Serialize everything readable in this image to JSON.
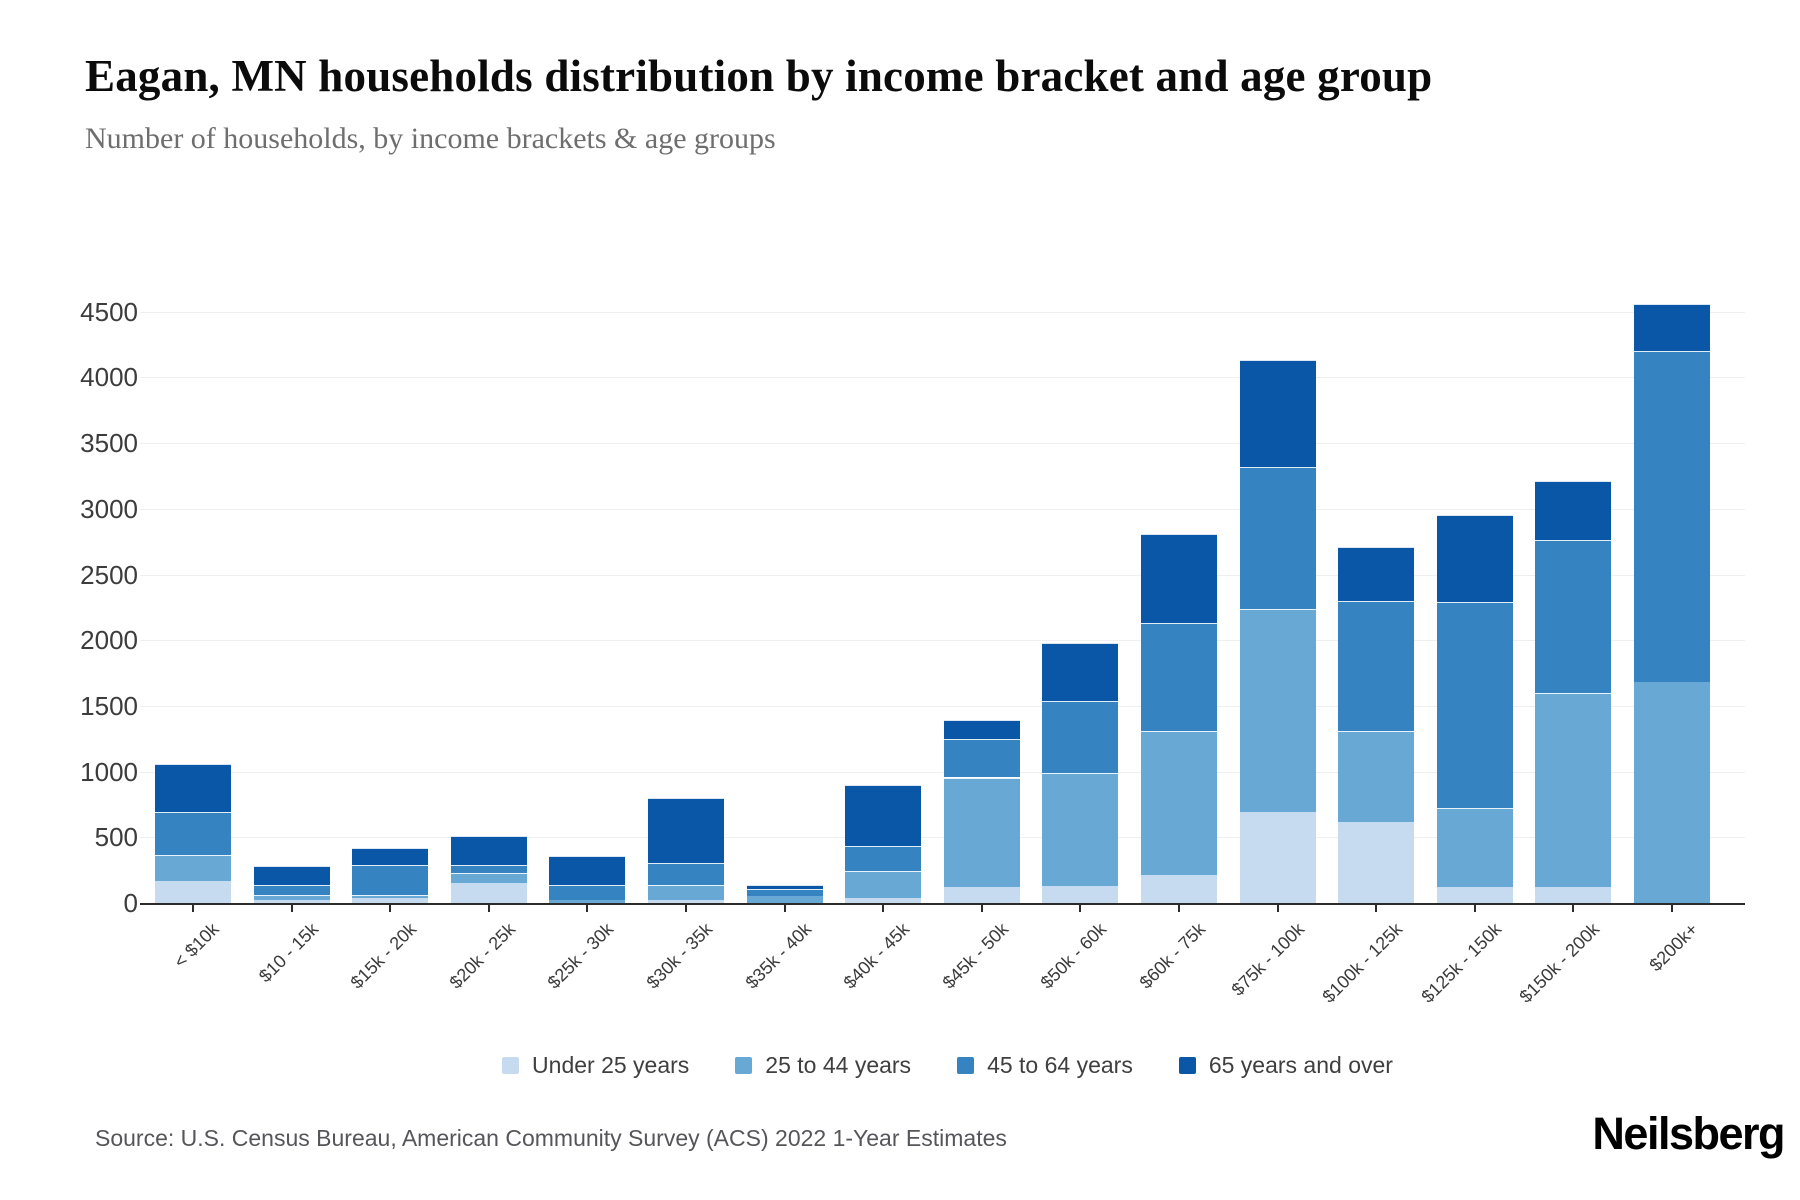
{
  "header": {
    "title": "Eagan, MN households distribution by income bracket and age group",
    "subtitle": "Number of households, by income brackets & age groups"
  },
  "chart_data": {
    "type": "bar",
    "stacked": true,
    "title": "Eagan, MN households distribution by income bracket and age group",
    "subtitle": "Number of households, by income brackets & age groups",
    "xlabel": "",
    "ylabel": "",
    "ylim": [
      0,
      4930
    ],
    "yticks": [
      0,
      500,
      1000,
      1500,
      2000,
      2500,
      3000,
      3500,
      4000,
      4500
    ],
    "grid": "horizontal",
    "legend_position": "bottom",
    "categories": [
      "< $10k",
      "$10 - 15k",
      "$15k - 20k",
      "$20k - 25k",
      "$25k - 30k",
      "$30k - 35k",
      "$35k - 40k",
      "$40k - 45k",
      "$45k - 50k",
      "$50k - 60k",
      "$60k - 75k",
      "$75k - 100k",
      "$100k - 125k",
      "$125k - 150k",
      "$150k - 200k",
      "$200k+"
    ],
    "series": [
      {
        "name": "Under 25 years",
        "color": "#c6dbef",
        "values": [
          165,
          25,
          40,
          150,
          0,
          25,
          0,
          40,
          120,
          130,
          210,
          690,
          620,
          120,
          120,
          0
        ]
      },
      {
        "name": "25 to 44 years",
        "color": "#68a8d5",
        "values": [
          200,
          35,
          20,
          80,
          20,
          115,
          55,
          205,
          835,
          860,
          1100,
          1550,
          690,
          600,
          1480,
          1680
        ]
      },
      {
        "name": "45 to 64 years",
        "color": "#3584c1",
        "values": [
          330,
          80,
          230,
          60,
          120,
          165,
          55,
          190,
          290,
          545,
          820,
          1080,
          990,
          1570,
          1160,
          2520
        ]
      },
      {
        "name": "65 years and over",
        "color": "#0b57a7",
        "values": [
          365,
          140,
          130,
          220,
          215,
          495,
          25,
          465,
          150,
          445,
          680,
          810,
          410,
          660,
          450,
          360
        ]
      }
    ],
    "totals": [
      1060,
      280,
      420,
      510,
      355,
      800,
      135,
      900,
      1395,
      1980,
      2810,
      4130,
      2710,
      2950,
      3210,
      4560
    ]
  },
  "footer": {
    "source": "Source: U.S. Census Bureau, American Community Survey (ACS) 2022 1-Year Estimates",
    "brand": "Neilsberg"
  }
}
